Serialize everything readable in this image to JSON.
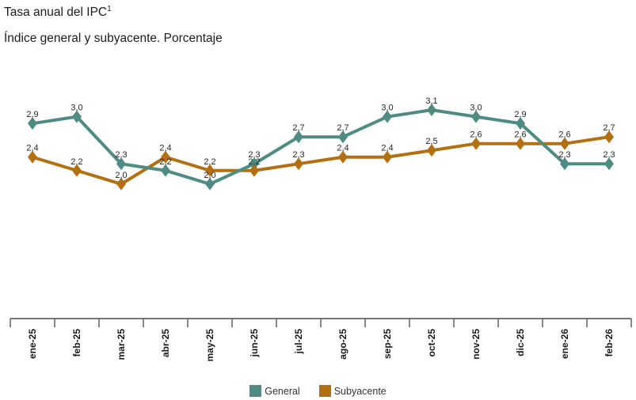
{
  "header": {
    "title": "Tasa anual del IPC",
    "title_superscript": "1",
    "subtitle": "Índice general y subyacente. Porcentaje"
  },
  "colors": {
    "general_series": "#4e8c83",
    "subyacente_series": "#b27013",
    "axis": "#4c4c4c",
    "tick_label": "#1a1a1a",
    "data_label": "#262626"
  },
  "chart_data": {
    "type": "line",
    "title": "Tasa anual del IPC",
    "subtitle": "Índice general y subyacente. Porcentaje",
    "xlabel": "",
    "ylabel": "",
    "categories": [
      "ene-25",
      "feb-25",
      "mar-25",
      "abr-25",
      "may-25",
      "jun-25",
      "jul-25",
      "ago-25",
      "sep-25",
      "oct-25",
      "nov-25",
      "dic-25",
      "ene-26",
      "feb-26"
    ],
    "series": [
      {
        "name": "General",
        "color": "#4e8c83",
        "values": [
          2.9,
          3.0,
          2.3,
          2.2,
          2.0,
          2.3,
          2.7,
          2.7,
          3.0,
          3.1,
          3.0,
          2.9,
          2.3,
          2.3
        ],
        "labels": [
          "2,9",
          "3,0",
          "2,3",
          "2,2",
          "2,0",
          "2,3",
          "2,7",
          "2,7",
          "3,0",
          "3,1",
          "3,0",
          "2,9",
          "2,3",
          "2,3"
        ]
      },
      {
        "name": "Subyacente",
        "color": "#b27013",
        "values": [
          2.4,
          2.2,
          2.0,
          2.4,
          2.2,
          2.2,
          2.3,
          2.4,
          2.4,
          2.5,
          2.6,
          2.6,
          2.6,
          2.7
        ],
        "labels": [
          "2,4",
          "2,2",
          "2,0",
          "2,4",
          "2,2",
          "2,2",
          "2,3",
          "2,4",
          "2,4",
          "2,5",
          "2,6",
          "2,6",
          "2,6",
          "2,7"
        ]
      }
    ],
    "ylim": [
      0,
      3.56
    ],
    "grid": false,
    "y_axis_visible": false,
    "legend_position": "bottom",
    "marker": "diamond",
    "decimal_separator": ","
  }
}
